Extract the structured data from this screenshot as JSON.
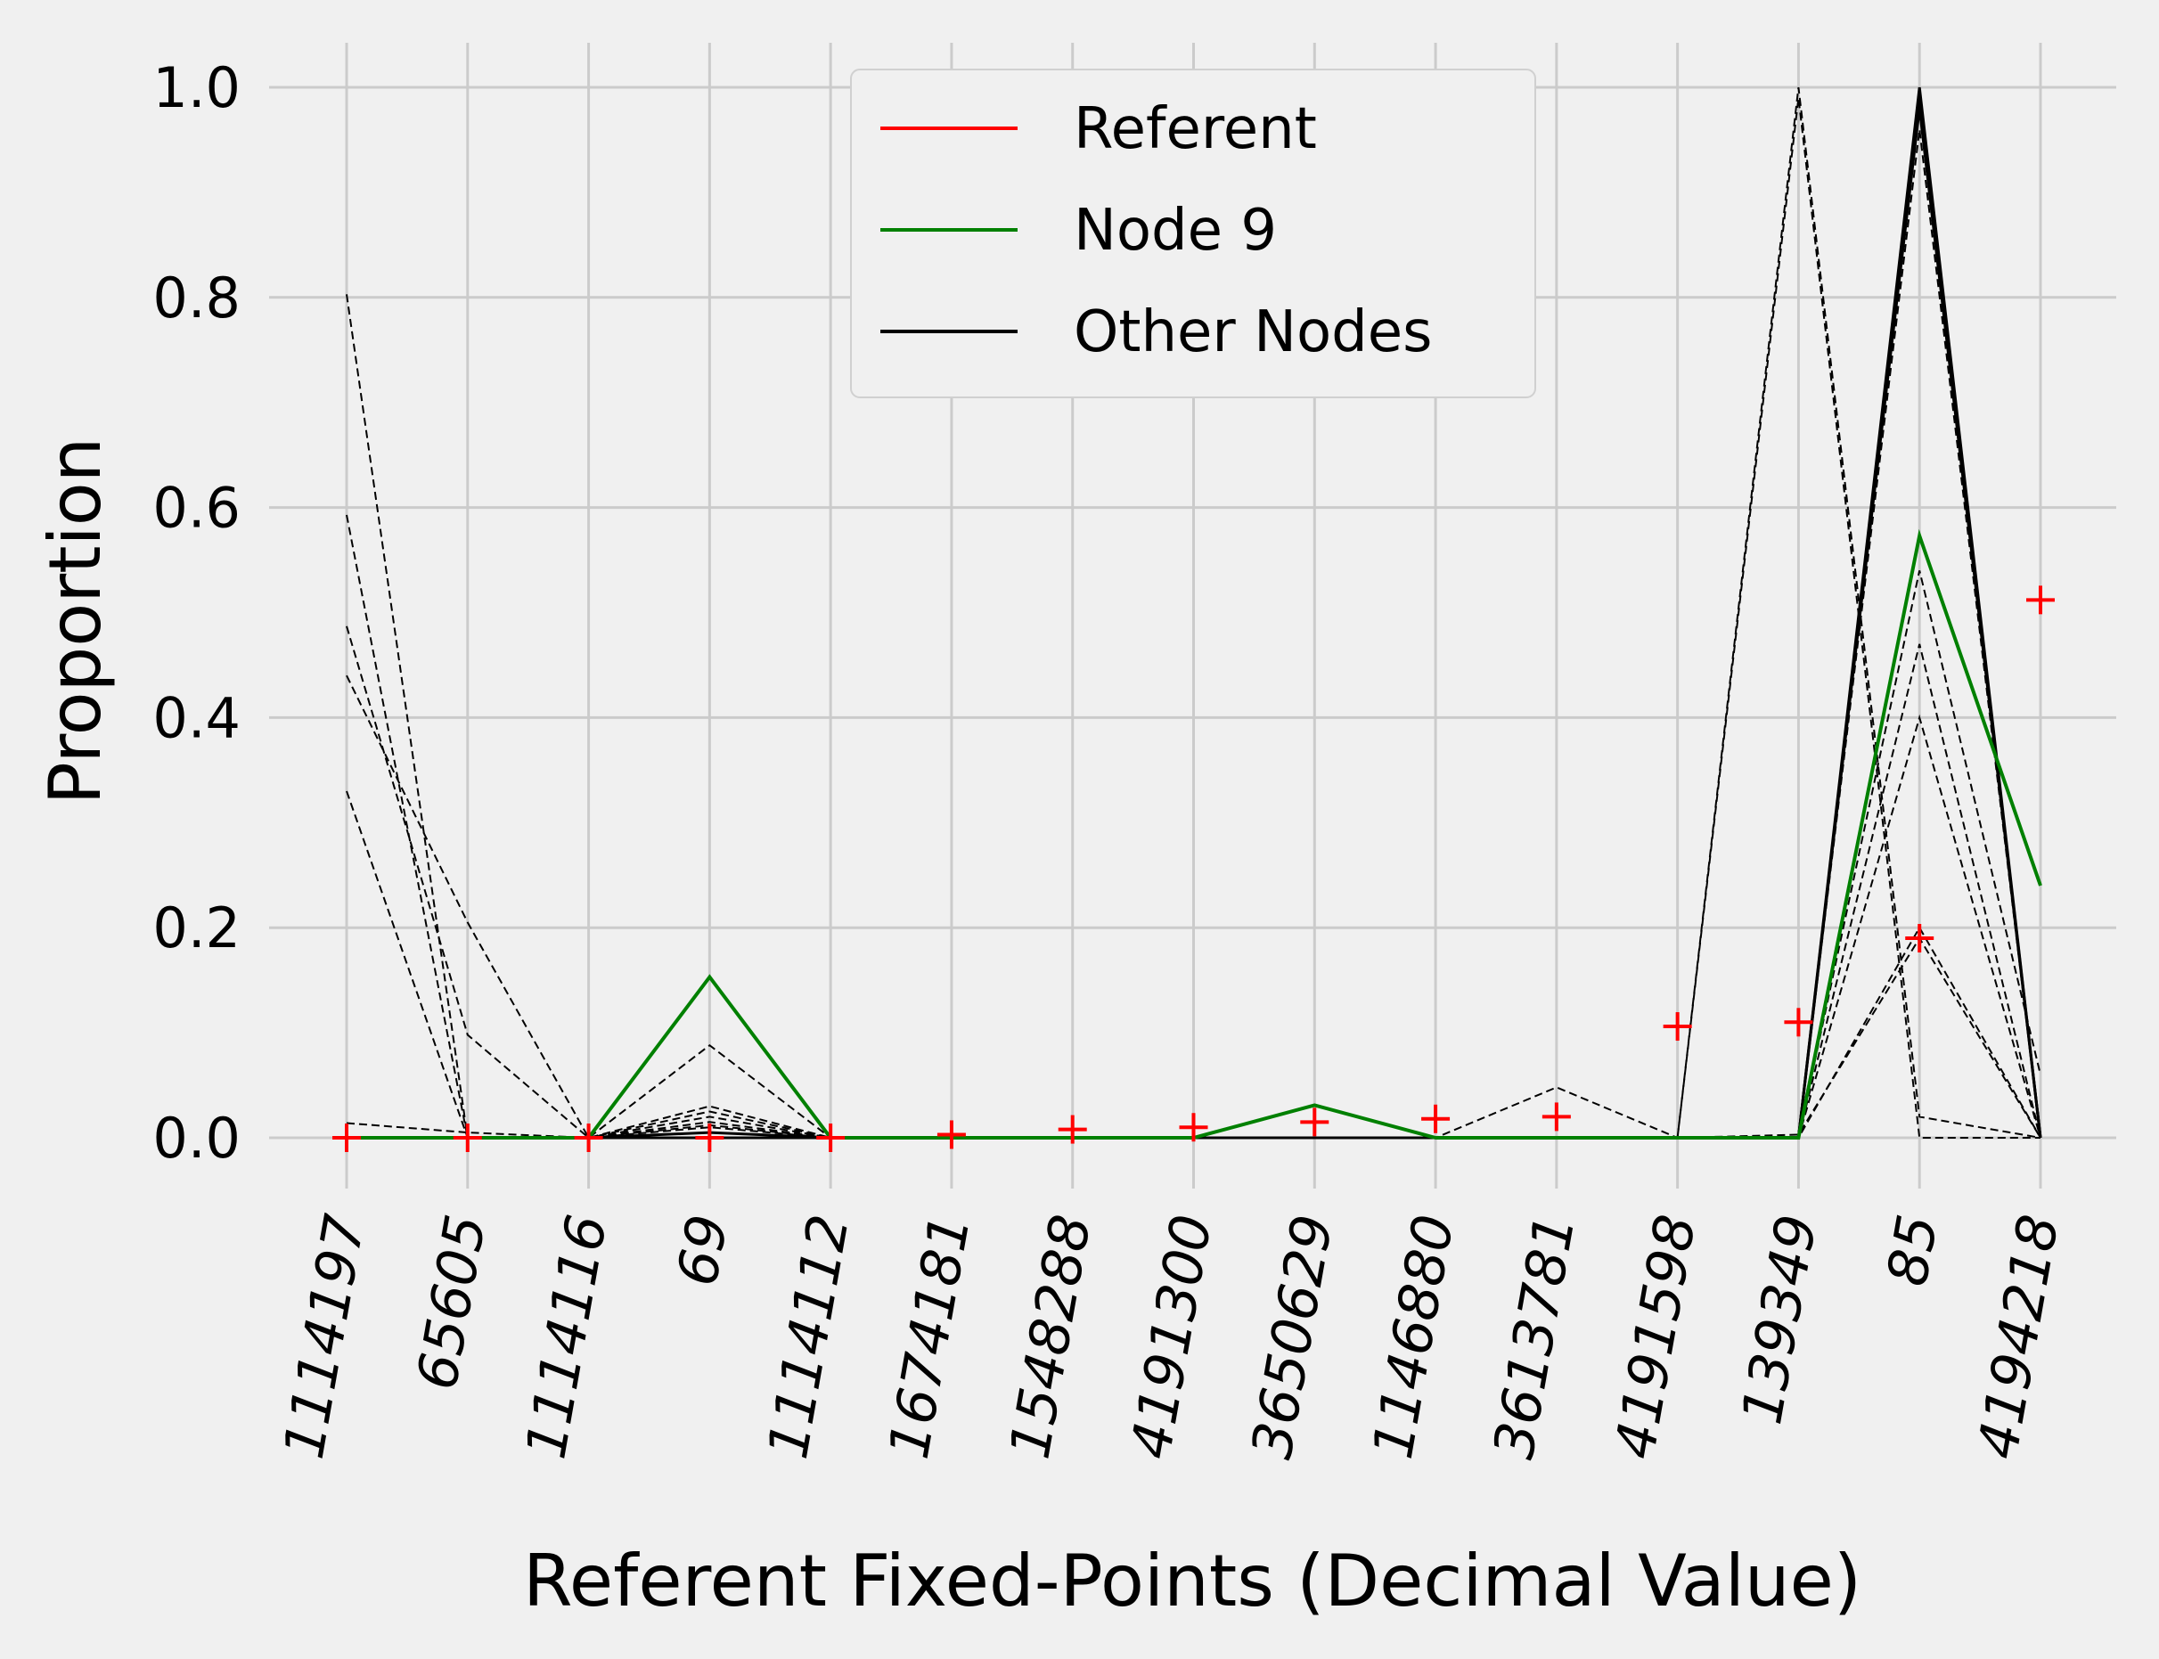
{
  "chart_data": {
    "type": "line",
    "xlabel": "Referent Fixed-Points (Decimal Value)",
    "ylabel": "Proportion",
    "categories": [
      "1114197",
      "65605",
      "1114116",
      "69",
      "1114112",
      "1674181",
      "1548288",
      "4191300",
      "3650629",
      "1146880",
      "3613781",
      "4191598",
      "139349",
      "85",
      "4194218"
    ],
    "ylim": [
      -0.04,
      1.04
    ],
    "yticks": [
      "0.0",
      "0.2",
      "0.4",
      "0.6",
      "0.8",
      "1.0"
    ],
    "grid": true,
    "legend_position": "top-center",
    "legend": [
      {
        "label": "Referent",
        "color": "#ff0000"
      },
      {
        "label": "Node 9",
        "color": "#008000"
      },
      {
        "label": "Other Nodes",
        "color": "#000000"
      }
    ],
    "referent": {
      "name": "Referent",
      "color": "#ff0000",
      "marker": "+",
      "values": [
        0.0,
        0.0,
        0.0,
        0.0,
        0.0,
        0.003,
        0.008,
        0.01,
        0.015,
        0.018,
        0.02,
        0.106,
        0.11,
        0.19,
        0.512
      ]
    },
    "node9": {
      "name": "Node 9",
      "color": "#008000",
      "values": [
        0.0,
        0.0,
        0.0,
        0.153,
        0.0,
        0.0,
        0.0,
        0.0,
        0.031,
        0.0,
        0.0,
        0.0,
        0.0,
        0.573,
        0.24
      ]
    },
    "other_nodes_color": "#000000",
    "other_nodes": [
      {
        "style": "solid",
        "values": [
          0,
          0,
          0,
          0,
          0,
          0,
          0,
          0,
          0,
          0,
          0,
          0,
          0,
          1.0,
          0
        ]
      },
      {
        "style": "solid",
        "values": [
          0,
          0,
          0,
          0,
          0,
          0,
          0,
          0,
          0,
          0,
          0,
          0,
          0,
          0.99,
          0
        ]
      },
      {
        "style": "solid",
        "values": [
          0,
          0,
          0,
          0.005,
          0,
          0,
          0,
          0,
          0,
          0,
          0,
          0,
          0,
          0.98,
          0
        ]
      },
      {
        "style": "dashed",
        "values": [
          0.803,
          0,
          0,
          0.01,
          0,
          0,
          0,
          0,
          0,
          0,
          0,
          0,
          1.0,
          0.02,
          0
        ]
      },
      {
        "style": "dashed",
        "values": [
          0.593,
          0,
          0,
          0.005,
          0,
          0,
          0,
          0,
          0,
          0,
          0,
          0,
          0.99,
          0,
          0
        ]
      },
      {
        "style": "dashed",
        "values": [
          0.487,
          0.098,
          0,
          0.088,
          0,
          0,
          0,
          0,
          0,
          0,
          0,
          0,
          0,
          0.54,
          0.06
        ]
      },
      {
        "style": "dashed",
        "values": [
          0.44,
          0.205,
          0,
          0.03,
          0,
          0,
          0,
          0,
          0,
          0,
          0.048,
          0,
          0,
          0.4,
          0
        ]
      },
      {
        "style": "dashed",
        "values": [
          0.33,
          0,
          0,
          0.025,
          0,
          0,
          0,
          0,
          0,
          0,
          0,
          0,
          0,
          0.47,
          0
        ]
      },
      {
        "style": "dashed",
        "values": [
          0.014,
          0.005,
          0,
          0.02,
          0,
          0,
          0,
          0,
          0,
          0,
          0,
          0,
          0.003,
          0.19,
          0
        ]
      },
      {
        "style": "dashed",
        "values": [
          0,
          0,
          0,
          0.015,
          0,
          0,
          0,
          0,
          0,
          0,
          0,
          0,
          0,
          0.2,
          0
        ]
      },
      {
        "style": "dashed",
        "values": [
          0,
          0,
          0,
          0.012,
          0,
          0,
          0,
          0,
          0,
          0,
          0,
          0,
          0,
          0.96,
          0
        ]
      }
    ]
  }
}
